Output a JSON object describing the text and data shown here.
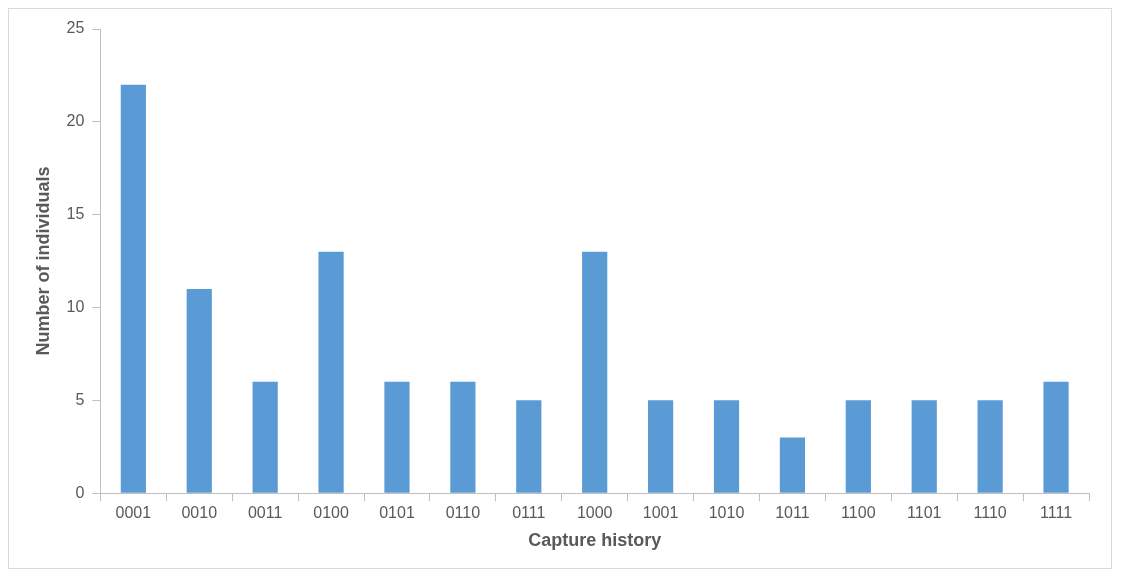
{
  "chart_data": {
    "type": "bar",
    "xlabel": "Capture history",
    "ylabel": "Number of individuals",
    "categories": [
      "0001",
      "0010",
      "0011",
      "0100",
      "0101",
      "0110",
      "0111",
      "1000",
      "1001",
      "1010",
      "1011",
      "1100",
      "1101",
      "1110",
      "1111"
    ],
    "values": [
      22,
      11,
      6,
      13,
      6,
      6,
      5,
      13,
      5,
      5,
      3,
      5,
      5,
      5,
      6
    ],
    "color": "#5b9bd5",
    "ylim": [
      0,
      25
    ],
    "yticks": [
      0,
      5,
      10,
      15,
      20,
      25
    ],
    "grid": false,
    "legend": false
  }
}
